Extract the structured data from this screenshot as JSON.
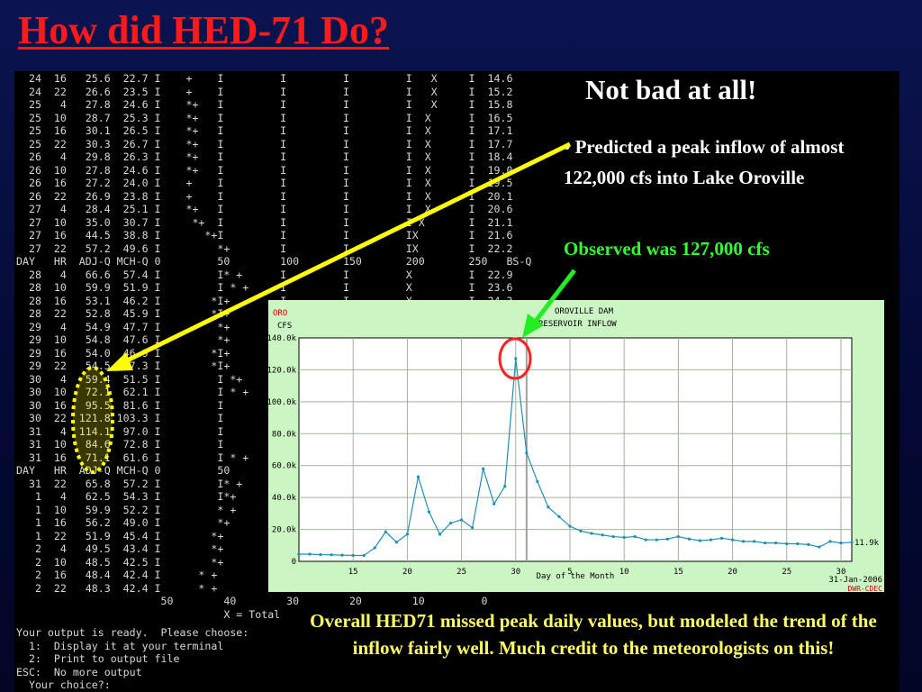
{
  "slide": {
    "title": "How did HED-71 Do?",
    "headline": "Not bad at all!",
    "predicted": "• Predicted a peak inflow of almost 122,000 cfs into Lake Oroville",
    "observed": "Observed was 127,000 cfs",
    "caption": "Overall HED71 missed peak daily values, but modeled the trend of the inflow fairly well. Much credit to the meteorologists on this!"
  },
  "terminal": {
    "lines": [
      "  24  16   25.6  22.7 I    +    I         I         I         I   X     I  14.6",
      "  24  22   26.6  23.5 I    +    I         I         I         I   X     I  15.2",
      "  25   4   27.8  24.6 I    *+   I         I         I         I   X     I  15.8",
      "  25  10   28.7  25.3 I    *+   I         I         I         I  X      I  16.5",
      "  25  16   30.1  26.5 I    *+   I         I         I         I  X      I  17.1",
      "  25  22   30.3  26.7 I    *+   I         I         I         I  X      I  17.7",
      "  26   4   29.8  26.3 I    *+   I         I         I         I  X      I  18.4",
      "  26  10   27.8  24.6 I    *+   I         I         I         I  X      I  19.0",
      "  26  16   27.2  24.0 I    +    I         I         I         I  X      I  19.5",
      "  26  22   26.9  23.8 I    +    I         I         I         I  X      I  20.1",
      "  27   4   28.4  25.1 I    *+   I         I         I         I  X      I  20.6",
      "  27  10   35.0  30.7 I     *+  I         I         I         I X       I  21.1",
      "  27  16   44.5  38.8 I       *+I         I         I         IX        I  21.6",
      "  27  22   57.2  49.6 I         *+        I         I         IX        I  22.2",
      "DAY   HR  ADJ-Q MCH-Q 0         50        100       150       200       250   BS-Q",
      "  28   4   66.6  57.4 I         I* +      I         I         X         I  22.9",
      "  28  10   59.9  51.9 I         I * +     I         I         X         I  23.6",
      "  28  16   53.1  46.2 I        *I+        I         I         X         I  24.3",
      "  28  22   52.8  45.9 I        *I+",
      "  29   4   54.9  47.7 I         *+",
      "  29  10   54.8  47.6 I         *+",
      "  29  16   54.0  46.9 I        *I+",
      "  29  22   54.5  47.3 I        *I+",
      "  30   4   59.4  51.5 I         I *+",
      "  30  10   72.1  62.1 I         I * +",
      "  30  16   95.5  81.6 I         I",
      "  30  22  121.8 103.3 I         I",
      "  31   4  114.1  97.0 I         I",
      "  31  10   84.6  72.8 I         I",
      "  31  16   71.1  61.6 I         I * +",
      "DAY   HR  ADJ-Q MCH-Q 0         50",
      "  31  22   65.8  57.2 I         I* +",
      "   1   4   62.5  54.3 I         I*+",
      "   1  10   59.9  52.2 I         * +",
      "   1  16   56.2  49.0 I         *+",
      "   1  22   51.9  45.4 I        *+",
      "   2   4   49.5  43.4 I        *+",
      "   2  10   48.5  42.5 I        *+",
      "   2  16   48.4  42.4 I      * +",
      "   2  22   48.3  42.4 I      * +",
      "                       50        40        30        20        10         0",
      "                                 X = Total"
    ],
    "menu": [
      "Your output is ready.  Please choose:",
      "  1:  Display it at your terminal",
      "  2:  Print to output file",
      "ESC:  No more output",
      "  Your choice?:"
    ]
  },
  "chart_data": {
    "type": "line",
    "title_left": [
      "ORO",
      "CFS"
    ],
    "title_right": [
      "OROVILLE DAM",
      "RESERVOIR INFLOW"
    ],
    "xlabel": "Day of the Month",
    "ylabel": "",
    "x": [
      10,
      11,
      12,
      13,
      14,
      15,
      16,
      17,
      18,
      19,
      20,
      21,
      22,
      23,
      24,
      25,
      26,
      27,
      28,
      29,
      30,
      31,
      32,
      33,
      34,
      35,
      36,
      37,
      38,
      39,
      40,
      41,
      42,
      43,
      44,
      45,
      46,
      47,
      48,
      49,
      50,
      51,
      52,
      53,
      54,
      55,
      56,
      57,
      58,
      59,
      60,
      61
    ],
    "values": [
      4500,
      4500,
      4200,
      4100,
      3900,
      3700,
      3700,
      8500,
      18500,
      12000,
      17000,
      53000,
      31000,
      17000,
      24000,
      26000,
      21000,
      58000,
      36000,
      47000,
      127000,
      68000,
      50000,
      34000,
      28000,
      22000,
      19000,
      17500,
      16500,
      15500,
      15000,
      15500,
      13500,
      13500,
      14000,
      15500,
      14000,
      13000,
      13500,
      14500,
      13500,
      12500,
      12500,
      11500,
      11500,
      11000,
      11000,
      10500,
      9000,
      12500,
      11500,
      11900
    ],
    "ylim": [
      0,
      140000
    ],
    "xlim": [
      10,
      61
    ],
    "ytick_labels": [
      "0",
      "20.0k",
      "40.0k",
      "60.0k",
      "80.0k",
      "100.0k",
      "120.0k",
      "140.0k"
    ],
    "ytick_values": [
      0,
      20000,
      40000,
      60000,
      80000,
      100000,
      120000,
      140000
    ],
    "xtick_labels": [
      "15",
      "20",
      "25",
      "30",
      "5",
      "10",
      "15",
      "20",
      "25",
      "30"
    ],
    "xtick_values": [
      15,
      20,
      25,
      30,
      35,
      40,
      45,
      50,
      55,
      60
    ],
    "marker_x": 31,
    "last_value_label": "11.9k",
    "date_label": "31-Jan-2006",
    "source_label": "DWR-CDEC",
    "grid": true,
    "colors": {
      "line": "#1e8fb0",
      "grid": "#9fb59a",
      "panel": "#ccf5c4",
      "plot_bg": "#ffffff",
      "marker": "#a0a0a0"
    }
  },
  "annotations": {
    "colors": {
      "arrow_yellow": "#ffff00",
      "arrow_green": "#22ee22",
      "circle_red": "#ff2020",
      "ellipse_yellow": "#ffff00"
    }
  }
}
